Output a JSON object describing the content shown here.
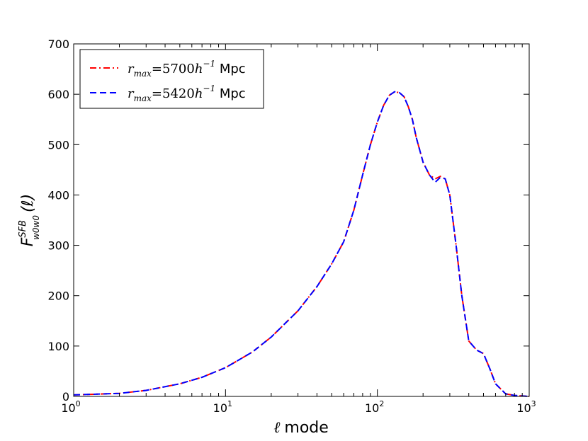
{
  "chart_data": {
    "type": "line",
    "xscale": "log",
    "xlim": [
      1,
      1000
    ],
    "ylim": [
      0,
      700
    ],
    "xlabel_symbol": "ℓ",
    "xlabel_text": "mode",
    "ylabel": "F^{SFB}_{w0 w0}(ℓ)",
    "ylabel_main": "F",
    "ylabel_sup": "SFB",
    "ylabel_sub": "w0w0",
    "ylabel_arg": "(ℓ)",
    "xticks": [
      1,
      10,
      100,
      1000
    ],
    "xtick_bases": [
      "10",
      "10",
      "10",
      "10"
    ],
    "xtick_exps": [
      "0",
      "1",
      "2",
      "3"
    ],
    "yticks": [
      0,
      100,
      200,
      300,
      400,
      500,
      600,
      700
    ],
    "ytick_labels": [
      "0",
      "100",
      "200",
      "300",
      "400",
      "500",
      "600",
      "700"
    ],
    "legend_position": "top-left",
    "series": [
      {
        "name": "r_max=5700h^-1 Mpc",
        "legend_value": "5700",
        "color": "#ff0000",
        "linestyle": "dashdot",
        "x": [
          1,
          2,
          3,
          5,
          7,
          10,
          15,
          20,
          30,
          40,
          50,
          60,
          70,
          80,
          90,
          100,
          110,
          120,
          130,
          140,
          150,
          160,
          170,
          180,
          200,
          220,
          240,
          260,
          280,
          300,
          330,
          360,
          400,
          450,
          500,
          550,
          600,
          700,
          800,
          1000
        ],
        "y": [
          3,
          6,
          12,
          25,
          38,
          57,
          88,
          118,
          170,
          218,
          263,
          307,
          370,
          440,
          500,
          545,
          578,
          598,
          605,
          603,
          595,
          575,
          550,
          515,
          465,
          440,
          432,
          437,
          432,
          400,
          300,
          200,
          110,
          92,
          85,
          55,
          25,
          5,
          2,
          0
        ]
      },
      {
        "name": "r_max=5420h^-1 Mpc",
        "legend_value": "5420",
        "color": "#0000ff",
        "linestyle": "dashed",
        "x": [
          1,
          2,
          3,
          5,
          7,
          10,
          15,
          20,
          30,
          40,
          50,
          60,
          70,
          80,
          90,
          100,
          110,
          120,
          130,
          140,
          150,
          160,
          170,
          180,
          200,
          220,
          240,
          260,
          280,
          300,
          330,
          360,
          400,
          450,
          500,
          550,
          600,
          700,
          800,
          1000
        ],
        "y": [
          3,
          6,
          12,
          25,
          38,
          57,
          88,
          118,
          170,
          218,
          263,
          307,
          370,
          440,
          500,
          545,
          578,
          598,
          605,
          603,
          595,
          575,
          550,
          515,
          465,
          440,
          425,
          435,
          432,
          400,
          300,
          200,
          110,
          92,
          85,
          55,
          25,
          5,
          2,
          0
        ]
      }
    ]
  }
}
